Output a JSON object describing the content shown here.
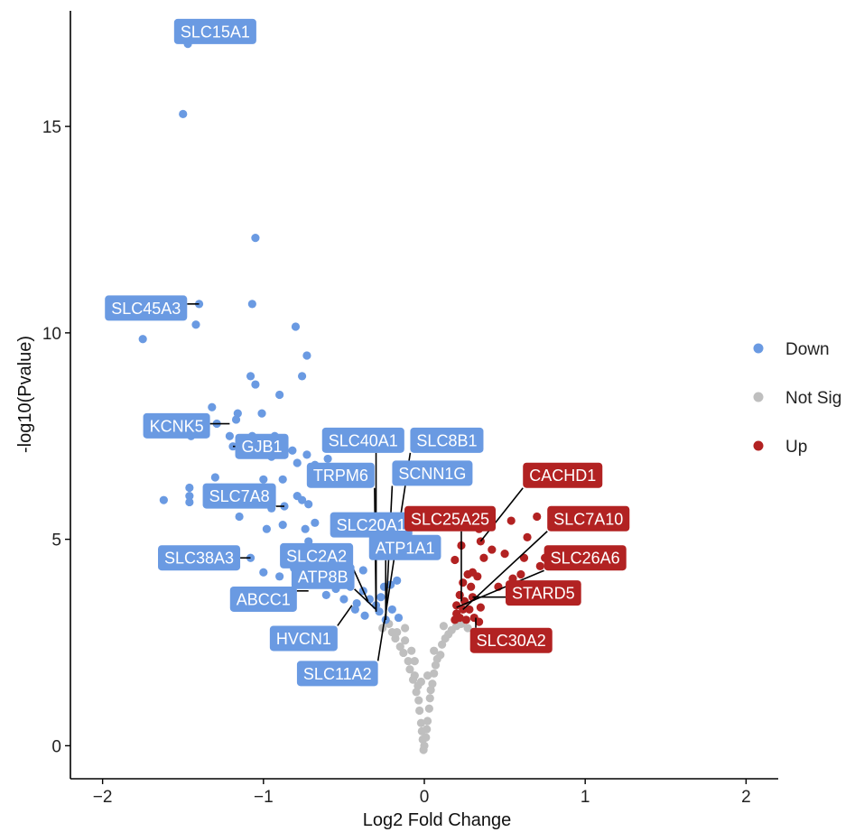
{
  "chart_data": {
    "type": "scatter",
    "title": "",
    "xlabel": "Log2 Fold Change",
    "ylabel": "-log10(Pvalue)",
    "xlim": [
      -2.2,
      2.2
    ],
    "ylim": [
      -0.8,
      17.8
    ],
    "xticks": [
      -2,
      -1,
      0,
      1,
      2
    ],
    "yticks": [
      0,
      5,
      10,
      15
    ],
    "grid": false,
    "legend_position": "right",
    "colors": {
      "Down": "#6a9ae2",
      "Not Sig": "#bfbfbf",
      "Up": "#b22222"
    },
    "series": [
      {
        "name": "Down",
        "points": [
          [
            -1.47,
            17.0
          ],
          [
            -1.5,
            15.3
          ],
          [
            -1.05,
            12.3
          ],
          [
            -1.4,
            10.7
          ],
          [
            -1.07,
            10.7
          ],
          [
            -1.75,
            9.85
          ],
          [
            -1.42,
            10.2
          ],
          [
            -0.8,
            10.15
          ],
          [
            -0.73,
            9.45
          ],
          [
            -0.76,
            8.95
          ],
          [
            -1.08,
            8.95
          ],
          [
            -1.05,
            8.75
          ],
          [
            -0.9,
            8.5
          ],
          [
            -1.32,
            8.2
          ],
          [
            -1.16,
            8.05
          ],
          [
            -1.01,
            8.05
          ],
          [
            -1.17,
            7.9
          ],
          [
            -1.21,
            7.5
          ],
          [
            -1.07,
            7.5
          ],
          [
            -0.93,
            7.5
          ],
          [
            -1.29,
            7.8
          ],
          [
            -1.15,
            7.35
          ],
          [
            -1.19,
            7.25
          ],
          [
            -1.45,
            7.5
          ],
          [
            -0.95,
            7.0
          ],
          [
            -0.82,
            7.15
          ],
          [
            -0.73,
            7.05
          ],
          [
            -0.6,
            6.95
          ],
          [
            -0.68,
            6.8
          ],
          [
            -0.79,
            6.85
          ],
          [
            -1.3,
            6.5
          ],
          [
            -1.0,
            6.45
          ],
          [
            -0.88,
            6.45
          ],
          [
            -1.62,
            5.95
          ],
          [
            -1.46,
            6.25
          ],
          [
            -1.46,
            6.05
          ],
          [
            -1.46,
            5.9
          ],
          [
            -1.26,
            6.25
          ],
          [
            -0.98,
            6.2
          ],
          [
            -0.79,
            6.05
          ],
          [
            -0.76,
            5.95
          ],
          [
            -0.72,
            5.85
          ],
          [
            -0.95,
            5.75
          ],
          [
            -0.87,
            5.8
          ],
          [
            -1.15,
            5.55
          ],
          [
            -0.88,
            5.35
          ],
          [
            -0.98,
            5.25
          ],
          [
            -0.74,
            5.25
          ],
          [
            -0.68,
            5.4
          ],
          [
            -0.72,
            4.95
          ],
          [
            -1.08,
            4.55
          ],
          [
            -1.0,
            4.2
          ],
          [
            -0.9,
            4.1
          ],
          [
            -0.81,
            4.3
          ],
          [
            -0.67,
            4.55
          ],
          [
            -0.52,
            4.45
          ],
          [
            -0.59,
            4.05
          ],
          [
            -0.74,
            3.95
          ],
          [
            -0.61,
            3.65
          ],
          [
            -0.5,
            3.55
          ],
          [
            -0.42,
            3.45
          ],
          [
            -0.55,
            3.8
          ],
          [
            -0.38,
            3.75
          ],
          [
            -0.34,
            3.55
          ],
          [
            -0.3,
            3.4
          ],
          [
            -0.28,
            3.25
          ],
          [
            -0.24,
            3.05
          ],
          [
            -0.2,
            3.3
          ],
          [
            -0.16,
            3.1
          ],
          [
            -0.27,
            3.6
          ],
          [
            -0.43,
            3.3
          ],
          [
            -0.37,
            3.15
          ],
          [
            -0.25,
            3.85
          ],
          [
            -0.21,
            3.9
          ],
          [
            -0.17,
            4.0
          ],
          [
            -0.46,
            3.85
          ],
          [
            -0.38,
            4.25
          ]
        ]
      },
      {
        "name": "Not Sig",
        "points": [
          [
            -0.22,
            2.95
          ],
          [
            -0.2,
            2.75
          ],
          [
            -0.18,
            2.6
          ],
          [
            -0.17,
            2.75
          ],
          [
            -0.15,
            2.4
          ],
          [
            -0.13,
            2.25
          ],
          [
            -0.12,
            2.55
          ],
          [
            -0.1,
            2.05
          ],
          [
            -0.09,
            1.85
          ],
          [
            -0.08,
            2.3
          ],
          [
            -0.07,
            1.6
          ],
          [
            -0.06,
            1.7
          ],
          [
            -0.05,
            1.3
          ],
          [
            -0.04,
            1.45
          ],
          [
            -0.035,
            1.1
          ],
          [
            -0.03,
            0.85
          ],
          [
            -0.02,
            0.55
          ],
          [
            -0.015,
            0.35
          ],
          [
            -0.01,
            0.15
          ],
          [
            0.0,
            0.0
          ],
          [
            -0.005,
            -0.1
          ],
          [
            0.01,
            0.2
          ],
          [
            0.015,
            0.4
          ],
          [
            0.02,
            0.6
          ],
          [
            0.03,
            0.9
          ],
          [
            0.035,
            1.15
          ],
          [
            0.04,
            1.35
          ],
          [
            0.05,
            1.5
          ],
          [
            0.06,
            1.75
          ],
          [
            0.07,
            1.95
          ],
          [
            0.08,
            2.1
          ],
          [
            0.1,
            2.2
          ],
          [
            0.11,
            2.45
          ],
          [
            0.13,
            2.6
          ],
          [
            0.15,
            2.7
          ],
          [
            0.17,
            2.8
          ],
          [
            0.2,
            2.9
          ],
          [
            0.23,
            2.95
          ],
          [
            0.27,
            2.85
          ],
          [
            -0.26,
            2.85
          ],
          [
            -0.12,
            2.85
          ],
          [
            0.12,
            2.9
          ],
          [
            -0.06,
            2.05
          ],
          [
            0.06,
            2.3
          ],
          [
            -0.02,
            1.55
          ],
          [
            0.02,
            1.7
          ]
        ]
      },
      {
        "name": "Up",
        "points": [
          [
            0.7,
            5.55
          ],
          [
            0.54,
            5.45
          ],
          [
            0.64,
            5.05
          ],
          [
            0.34,
            5.25
          ],
          [
            0.27,
            5.5
          ],
          [
            0.35,
            4.95
          ],
          [
            0.42,
            4.75
          ],
          [
            0.5,
            4.65
          ],
          [
            0.62,
            4.55
          ],
          [
            0.72,
            4.35
          ],
          [
            0.75,
            4.55
          ],
          [
            0.6,
            4.15
          ],
          [
            0.55,
            4.05
          ],
          [
            0.46,
            3.85
          ],
          [
            0.37,
            4.55
          ],
          [
            0.23,
            4.85
          ],
          [
            0.19,
            4.5
          ],
          [
            0.27,
            4.15
          ],
          [
            0.3,
            4.2
          ],
          [
            0.33,
            4.1
          ],
          [
            0.24,
            3.95
          ],
          [
            0.29,
            3.85
          ],
          [
            0.22,
            3.65
          ],
          [
            0.25,
            3.5
          ],
          [
            0.3,
            3.6
          ],
          [
            0.2,
            3.4
          ],
          [
            0.24,
            3.3
          ],
          [
            0.2,
            3.2
          ],
          [
            0.28,
            3.3
          ],
          [
            0.35,
            3.35
          ],
          [
            0.22,
            3.1
          ],
          [
            0.19,
            3.05
          ],
          [
            0.26,
            3.05
          ],
          [
            0.31,
            3.1
          ],
          [
            0.34,
            3.0
          ]
        ]
      }
    ],
    "labels": [
      {
        "text": "SLC15A1",
        "series": "Down",
        "x": -1.47,
        "y": 17.0,
        "box_x": -1.3,
        "box_y": 17.3
      },
      {
        "text": "SLC45A3",
        "series": "Down",
        "x": -1.4,
        "y": 10.7,
        "box_x": -1.73,
        "box_y": 10.6
      },
      {
        "text": "KCNK5",
        "series": "Down",
        "x": -1.21,
        "y": 7.8,
        "box_x": -1.54,
        "box_y": 7.75
      },
      {
        "text": "GJB1",
        "series": "Down",
        "x": -1.19,
        "y": 7.25,
        "box_x": -1.01,
        "box_y": 7.25
      },
      {
        "text": "SLC7A8",
        "series": "Down",
        "x": -0.87,
        "y": 5.8,
        "box_x": -1.15,
        "box_y": 6.05
      },
      {
        "text": "SLC38A3",
        "series": "Down",
        "x": -1.08,
        "y": 4.55,
        "box_x": -1.4,
        "box_y": 4.55
      },
      {
        "text": "ABCC1",
        "series": "Down",
        "x": -0.72,
        "y": 3.75,
        "box_x": -1.0,
        "box_y": 3.55
      },
      {
        "text": "SLC40A1",
        "series": "Down",
        "x": -0.3,
        "y": 3.25,
        "box_x": -0.38,
        "box_y": 7.4
      },
      {
        "text": "SLC8B1",
        "series": "Down",
        "x": -0.25,
        "y": 2.95,
        "box_x": 0.14,
        "box_y": 7.4
      },
      {
        "text": "TRPM6",
        "series": "Down",
        "x": -0.3,
        "y": 3.25,
        "box_x": -0.52,
        "box_y": 6.55
      },
      {
        "text": "SCNN1G",
        "series": "Down",
        "x": -0.24,
        "y": 3.05,
        "box_x": 0.05,
        "box_y": 6.6
      },
      {
        "text": "SLC20A1",
        "series": "Down",
        "x": -0.3,
        "y": 3.4,
        "box_x": -0.33,
        "box_y": 5.35
      },
      {
        "text": "ATP1A1",
        "series": "Down",
        "x": -0.24,
        "y": 3.05,
        "box_x": -0.12,
        "box_y": 4.8
      },
      {
        "text": "SLC2A2",
        "series": "Down",
        "x": -0.35,
        "y": 3.5,
        "box_x": -0.67,
        "box_y": 4.6
      },
      {
        "text": "ATP8B",
        "series": "Down",
        "x": -0.3,
        "y": 3.3,
        "box_x": -0.63,
        "box_y": 4.1
      },
      {
        "text": "HVCN1",
        "series": "Down",
        "x": -0.45,
        "y": 3.4,
        "box_x": -0.75,
        "box_y": 2.6
      },
      {
        "text": "SLC11A2",
        "series": "Down",
        "x": -0.25,
        "y": 3.0,
        "box_x": -0.54,
        "box_y": 1.75
      },
      {
        "text": "CACHD1",
        "series": "Up",
        "x": 0.35,
        "y": 4.95,
        "box_x": 0.86,
        "box_y": 6.55
      },
      {
        "text": "SLC25A25",
        "series": "Up",
        "x": 0.23,
        "y": 3.5,
        "box_x": 0.16,
        "box_y": 5.5
      },
      {
        "text": "SLC7A10",
        "series": "Up",
        "x": 0.24,
        "y": 3.3,
        "box_x": 1.02,
        "box_y": 5.5
      },
      {
        "text": "SLC26A6",
        "series": "Up",
        "x": 0.2,
        "y": 3.35,
        "box_x": 1.0,
        "box_y": 4.55
      },
      {
        "text": "STARD5",
        "series": "Up",
        "x": 0.3,
        "y": 3.6,
        "box_x": 0.74,
        "box_y": 3.7
      },
      {
        "text": "SLC30A2",
        "series": "Up",
        "x": 0.32,
        "y": 3.1,
        "box_x": 0.54,
        "box_y": 2.55
      }
    ]
  }
}
